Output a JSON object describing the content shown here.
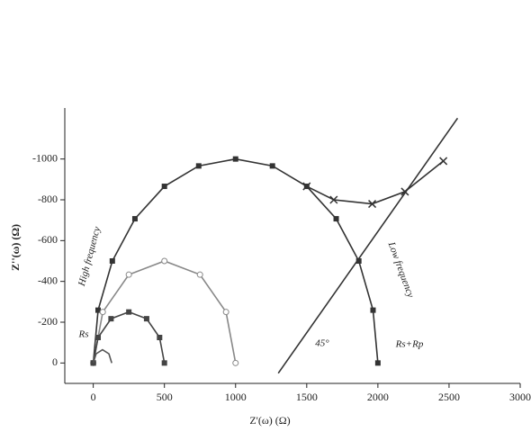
{
  "chart_data": {
    "type": "line",
    "xlabel": "Z'(ω) (Ω)",
    "ylabel": "Z''(ω) (Ω)",
    "xlim": [
      -200,
      3000
    ],
    "xticks": [
      0,
      500,
      1000,
      1500,
      2000,
      2500,
      3000
    ],
    "ylim": [
      100,
      -1250
    ],
    "yticks": [
      0,
      -200,
      -400,
      -600,
      -800,
      -1000
    ],
    "grid": false,
    "annotations": [
      "High frequency",
      "Low frequency",
      "Rs",
      "Rs+Rp",
      "45°"
    ],
    "series": [
      {
        "color": "#333333",
        "marker": "square",
        "x": [
          0,
          34,
          134,
          293,
          500,
          741,
          1000,
          1259,
          1500,
          1707,
          1866,
          1966,
          2000
        ],
        "values": [
          0,
          -259,
          -500,
          -707,
          -866,
          -966,
          -1000,
          -966,
          -866,
          -707,
          -500,
          -259,
          0
        ]
      },
      {
        "color": "#333333",
        "marker": "x",
        "x": [
          1500,
          1690,
          1960,
          2190,
          2460
        ],
        "values": [
          -866,
          -800,
          -780,
          -840,
          -990
        ]
      },
      {
        "color": "#333333",
        "marker": "none",
        "x": [
          1300,
          2560
        ],
        "values": [
          50,
          -1200
        ]
      },
      {
        "color": "#888888",
        "marker": "circle",
        "x": [
          0,
          67,
          250,
          500,
          750,
          933,
          1000
        ],
        "values": [
          0,
          -250,
          -433,
          -500,
          -433,
          -250,
          0
        ]
      },
      {
        "color": "#444444",
        "marker": "square",
        "x": [
          0,
          34,
          125,
          250,
          375,
          466,
          500
        ],
        "values": [
          0,
          -125,
          -217,
          -250,
          -217,
          -125,
          0
        ]
      },
      {
        "color": "#555555",
        "marker": "none",
        "x": [
          0,
          20,
          65,
          110,
          130
        ],
        "values": [
          0,
          -45,
          -65,
          -45,
          0
        ]
      }
    ]
  }
}
